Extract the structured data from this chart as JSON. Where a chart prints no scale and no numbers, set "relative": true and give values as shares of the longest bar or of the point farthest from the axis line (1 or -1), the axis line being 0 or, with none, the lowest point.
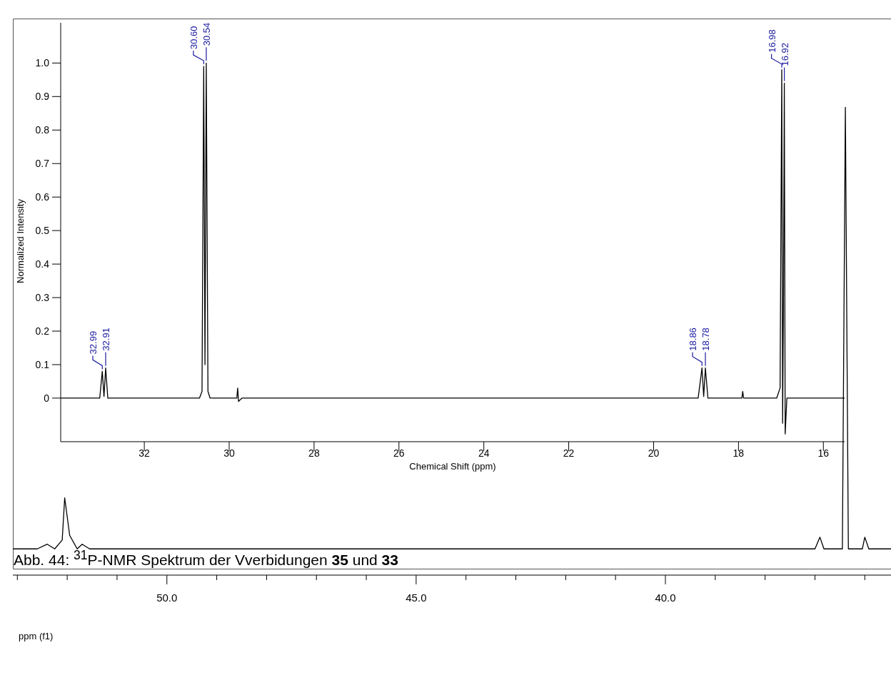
{
  "chart_data": [
    {
      "type": "line",
      "xlabel": "Chemical Shift (ppm)",
      "ylabel": "Normalized Intensity",
      "xlim": [
        33.97,
        15.5
      ],
      "xticks": [
        32,
        30,
        28,
        26,
        24,
        22,
        20,
        18,
        16
      ],
      "ylim": [
        -0.13,
        1.12
      ],
      "yticks": [
        0,
        0.1,
        0.2,
        0.3,
        0.4,
        0.5,
        0.6,
        0.7,
        0.8,
        0.9,
        {
          "value": 1,
          "label": "1.0"
        }
      ],
      "marker": "none",
      "series": [
        {
          "color": "#000000",
          "x": [
            33.97,
            33.05,
            32.99,
            32.95,
            32.91,
            32.86,
            30.7,
            30.64,
            30.6,
            30.57,
            30.54,
            30.5,
            30.45,
            29.82,
            29.8,
            29.78,
            29.7,
            18.95,
            18.86,
            18.82,
            18.78,
            18.72,
            17.92,
            17.9,
            17.88,
            17.1,
            17.02,
            16.98,
            16.96,
            16.94,
            16.92,
            16.9,
            16.86,
            15.5
          ],
          "values": [
            0,
            0,
            0.08,
            0.005,
            0.09,
            0,
            0,
            0.02,
            0.99,
            0.1,
            1.0,
            0.02,
            0,
            0,
            0.03,
            -0.01,
            0,
            0,
            0.09,
            0.005,
            0.09,
            0,
            0,
            0.02,
            0,
            0,
            0.03,
            0.98,
            -0.075,
            0.3,
            0.94,
            -0.107,
            0,
            0
          ]
        }
      ],
      "annotations": [
        {
          "text": "32.99",
          "x": 32.99,
          "y": 0.08
        },
        {
          "text": "32.91",
          "x": 32.91,
          "y": 0.09
        },
        {
          "text": "30.60",
          "x": 30.6,
          "y": 0.99
        },
        {
          "text": "30.54",
          "x": 30.54,
          "y": 1.0
        },
        {
          "text": "18.86",
          "x": 18.86,
          "y": 0.09
        },
        {
          "text": "18.78",
          "x": 18.78,
          "y": 0.09
        },
        {
          "text": "16.98",
          "x": 16.98,
          "y": 0.98
        },
        {
          "text": "16.92",
          "x": 16.92,
          "y": 0.94
        }
      ]
    },
    {
      "type": "line",
      "relative": true,
      "xlabel": "ppm (f1)",
      "xlim": [
        53.09,
        35.36
      ],
      "xticks": [
        {
          "value": 53,
          "label": null
        },
        {
          "value": 52,
          "label": null
        },
        {
          "value": 51,
          "label": null
        },
        {
          "value": 50,
          "label": "50.0"
        },
        {
          "value": 49,
          "label": null
        },
        {
          "value": 48,
          "label": null
        },
        {
          "value": 47,
          "label": null
        },
        {
          "value": 46,
          "label": null
        },
        {
          "value": 45,
          "label": "45.0"
        },
        {
          "value": 44,
          "label": null
        },
        {
          "value": 43,
          "label": null
        },
        {
          "value": 42,
          "label": null
        },
        {
          "value": 41,
          "label": null
        },
        {
          "value": 40,
          "label": "40.0"
        },
        {
          "value": 39,
          "label": null
        },
        {
          "value": 38,
          "label": null
        },
        {
          "value": 37,
          "label": null
        },
        {
          "value": 36,
          "label": null
        }
      ],
      "marker": "none",
      "tick_labels": "x",
      "series": [
        {
          "color": "#000000",
          "x": [
            53.09,
            52.6,
            52.4,
            52.25,
            52.1,
            52.05,
            51.95,
            51.8,
            51.7,
            51.55,
            37.0,
            36.9,
            36.82,
            36.45,
            36.39,
            36.33,
            36.05,
            36.0,
            35.92,
            35.36
          ],
          "values": [
            0.056,
            0.056,
            0.066,
            0.056,
            0.075,
            0.165,
            0.085,
            0.056,
            0.066,
            0.056,
            0.056,
            0.081,
            0.056,
            0.056,
            1,
            0.056,
            0.056,
            0.081,
            0.056,
            0.056
          ]
        }
      ],
      "annotations": [
        "Abb. 44: $^{31}$P-NMR Spektrum der Vverbidungen 35 und 33"
      ]
    }
  ]
}
